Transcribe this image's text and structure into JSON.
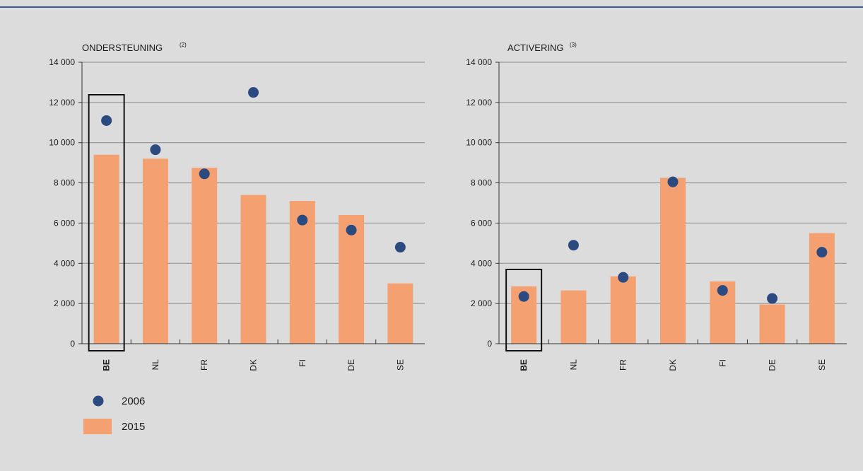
{
  "colors": {
    "background": "#dcdcdc",
    "top_rule": "#3e5a93",
    "bar_2015": "#f4a071",
    "dot_2006": "#2b4a7f",
    "grid": "#8a8a8a",
    "highlight_box": "#111111"
  },
  "legend": {
    "items": [
      {
        "label": "2006",
        "marker": "dot"
      },
      {
        "label": "2015",
        "marker": "bar"
      }
    ]
  },
  "chart_data": [
    {
      "type": "bar",
      "title": "ONDERSTEUNING",
      "title_note": "(2)",
      "categories": [
        "BE",
        "NL",
        "FR",
        "DK",
        "FI",
        "DE",
        "SE"
      ],
      "highlight_category": "BE",
      "ylim": [
        0,
        14000
      ],
      "yticks": [
        0,
        2000,
        4000,
        6000,
        8000,
        10000,
        12000,
        14000
      ],
      "ytick_labels": [
        "0",
        "2 000",
        "4 000",
        "6 000",
        "8 000",
        "10 000",
        "12 000",
        "14 000"
      ],
      "grid": true,
      "series": [
        {
          "name": "2015",
          "kind": "bar",
          "values": [
            9400,
            9200,
            8750,
            7400,
            7100,
            6400,
            3000
          ]
        },
        {
          "name": "2006",
          "kind": "dot",
          "values": [
            11100,
            9650,
            8450,
            12500,
            6150,
            5650,
            4800
          ]
        }
      ]
    },
    {
      "type": "bar",
      "title": "ACTIVERING",
      "title_note": "(3)",
      "categories": [
        "BE",
        "NL",
        "FR",
        "DK",
        "FI",
        "DE",
        "SE"
      ],
      "highlight_category": "BE",
      "ylim": [
        0,
        14000
      ],
      "yticks": [
        0,
        2000,
        4000,
        6000,
        8000,
        10000,
        12000,
        14000
      ],
      "ytick_labels": [
        "0",
        "2 000",
        "4 000",
        "6 000",
        "8 000",
        "10 000",
        "12 000",
        "14 000"
      ],
      "grid": true,
      "series": [
        {
          "name": "2015",
          "kind": "bar",
          "values": [
            2850,
            2650,
            3350,
            8250,
            3100,
            1950,
            5500
          ]
        },
        {
          "name": "2006",
          "kind": "dot",
          "values": [
            2350,
            4900,
            3300,
            8050,
            2650,
            2250,
            4550
          ]
        }
      ]
    }
  ]
}
